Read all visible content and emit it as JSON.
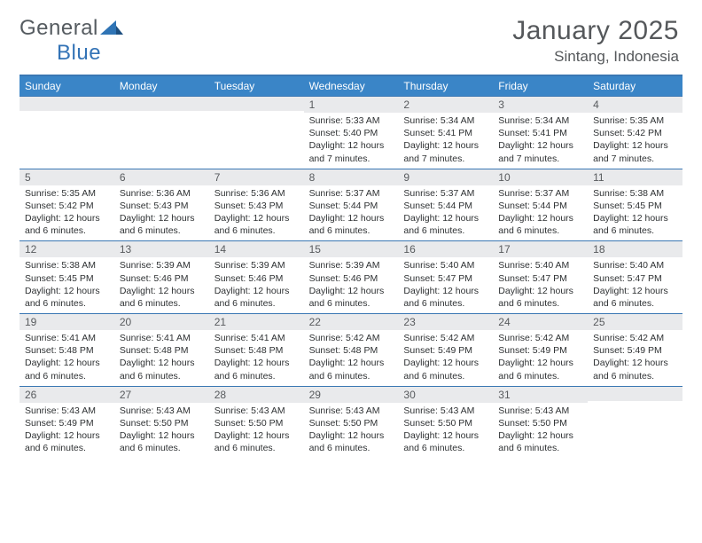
{
  "brand": {
    "text1": "General",
    "text2": "Blue",
    "mark_fill": "#2f74b5"
  },
  "header": {
    "title": "January 2025",
    "location": "Sintang, Indonesia"
  },
  "colors": {
    "header_bar": "#3a85c7",
    "border": "#3a77b3",
    "daynum_bg": "#e9eaec",
    "text_dark": "#2e3133",
    "text_mid": "#55585b"
  },
  "calendar": {
    "weekdays": [
      "Sunday",
      "Monday",
      "Tuesday",
      "Wednesday",
      "Thursday",
      "Friday",
      "Saturday"
    ],
    "weeks": [
      [
        {
          "n": "",
          "sr": "",
          "ss": "",
          "dl": ""
        },
        {
          "n": "",
          "sr": "",
          "ss": "",
          "dl": ""
        },
        {
          "n": "",
          "sr": "",
          "ss": "",
          "dl": ""
        },
        {
          "n": "1",
          "sr": "Sunrise: 5:33 AM",
          "ss": "Sunset: 5:40 PM",
          "dl": "Daylight: 12 hours and 7 minutes."
        },
        {
          "n": "2",
          "sr": "Sunrise: 5:34 AM",
          "ss": "Sunset: 5:41 PM",
          "dl": "Daylight: 12 hours and 7 minutes."
        },
        {
          "n": "3",
          "sr": "Sunrise: 5:34 AM",
          "ss": "Sunset: 5:41 PM",
          "dl": "Daylight: 12 hours and 7 minutes."
        },
        {
          "n": "4",
          "sr": "Sunrise: 5:35 AM",
          "ss": "Sunset: 5:42 PM",
          "dl": "Daylight: 12 hours and 7 minutes."
        }
      ],
      [
        {
          "n": "5",
          "sr": "Sunrise: 5:35 AM",
          "ss": "Sunset: 5:42 PM",
          "dl": "Daylight: 12 hours and 6 minutes."
        },
        {
          "n": "6",
          "sr": "Sunrise: 5:36 AM",
          "ss": "Sunset: 5:43 PM",
          "dl": "Daylight: 12 hours and 6 minutes."
        },
        {
          "n": "7",
          "sr": "Sunrise: 5:36 AM",
          "ss": "Sunset: 5:43 PM",
          "dl": "Daylight: 12 hours and 6 minutes."
        },
        {
          "n": "8",
          "sr": "Sunrise: 5:37 AM",
          "ss": "Sunset: 5:44 PM",
          "dl": "Daylight: 12 hours and 6 minutes."
        },
        {
          "n": "9",
          "sr": "Sunrise: 5:37 AM",
          "ss": "Sunset: 5:44 PM",
          "dl": "Daylight: 12 hours and 6 minutes."
        },
        {
          "n": "10",
          "sr": "Sunrise: 5:37 AM",
          "ss": "Sunset: 5:44 PM",
          "dl": "Daylight: 12 hours and 6 minutes."
        },
        {
          "n": "11",
          "sr": "Sunrise: 5:38 AM",
          "ss": "Sunset: 5:45 PM",
          "dl": "Daylight: 12 hours and 6 minutes."
        }
      ],
      [
        {
          "n": "12",
          "sr": "Sunrise: 5:38 AM",
          "ss": "Sunset: 5:45 PM",
          "dl": "Daylight: 12 hours and 6 minutes."
        },
        {
          "n": "13",
          "sr": "Sunrise: 5:39 AM",
          "ss": "Sunset: 5:46 PM",
          "dl": "Daylight: 12 hours and 6 minutes."
        },
        {
          "n": "14",
          "sr": "Sunrise: 5:39 AM",
          "ss": "Sunset: 5:46 PM",
          "dl": "Daylight: 12 hours and 6 minutes."
        },
        {
          "n": "15",
          "sr": "Sunrise: 5:39 AM",
          "ss": "Sunset: 5:46 PM",
          "dl": "Daylight: 12 hours and 6 minutes."
        },
        {
          "n": "16",
          "sr": "Sunrise: 5:40 AM",
          "ss": "Sunset: 5:47 PM",
          "dl": "Daylight: 12 hours and 6 minutes."
        },
        {
          "n": "17",
          "sr": "Sunrise: 5:40 AM",
          "ss": "Sunset: 5:47 PM",
          "dl": "Daylight: 12 hours and 6 minutes."
        },
        {
          "n": "18",
          "sr": "Sunrise: 5:40 AM",
          "ss": "Sunset: 5:47 PM",
          "dl": "Daylight: 12 hours and 6 minutes."
        }
      ],
      [
        {
          "n": "19",
          "sr": "Sunrise: 5:41 AM",
          "ss": "Sunset: 5:48 PM",
          "dl": "Daylight: 12 hours and 6 minutes."
        },
        {
          "n": "20",
          "sr": "Sunrise: 5:41 AM",
          "ss": "Sunset: 5:48 PM",
          "dl": "Daylight: 12 hours and 6 minutes."
        },
        {
          "n": "21",
          "sr": "Sunrise: 5:41 AM",
          "ss": "Sunset: 5:48 PM",
          "dl": "Daylight: 12 hours and 6 minutes."
        },
        {
          "n": "22",
          "sr": "Sunrise: 5:42 AM",
          "ss": "Sunset: 5:48 PM",
          "dl": "Daylight: 12 hours and 6 minutes."
        },
        {
          "n": "23",
          "sr": "Sunrise: 5:42 AM",
          "ss": "Sunset: 5:49 PM",
          "dl": "Daylight: 12 hours and 6 minutes."
        },
        {
          "n": "24",
          "sr": "Sunrise: 5:42 AM",
          "ss": "Sunset: 5:49 PM",
          "dl": "Daylight: 12 hours and 6 minutes."
        },
        {
          "n": "25",
          "sr": "Sunrise: 5:42 AM",
          "ss": "Sunset: 5:49 PM",
          "dl": "Daylight: 12 hours and 6 minutes."
        }
      ],
      [
        {
          "n": "26",
          "sr": "Sunrise: 5:43 AM",
          "ss": "Sunset: 5:49 PM",
          "dl": "Daylight: 12 hours and 6 minutes."
        },
        {
          "n": "27",
          "sr": "Sunrise: 5:43 AM",
          "ss": "Sunset: 5:50 PM",
          "dl": "Daylight: 12 hours and 6 minutes."
        },
        {
          "n": "28",
          "sr": "Sunrise: 5:43 AM",
          "ss": "Sunset: 5:50 PM",
          "dl": "Daylight: 12 hours and 6 minutes."
        },
        {
          "n": "29",
          "sr": "Sunrise: 5:43 AM",
          "ss": "Sunset: 5:50 PM",
          "dl": "Daylight: 12 hours and 6 minutes."
        },
        {
          "n": "30",
          "sr": "Sunrise: 5:43 AM",
          "ss": "Sunset: 5:50 PM",
          "dl": "Daylight: 12 hours and 6 minutes."
        },
        {
          "n": "31",
          "sr": "Sunrise: 5:43 AM",
          "ss": "Sunset: 5:50 PM",
          "dl": "Daylight: 12 hours and 6 minutes."
        },
        {
          "n": "",
          "sr": "",
          "ss": "",
          "dl": ""
        }
      ]
    ]
  }
}
